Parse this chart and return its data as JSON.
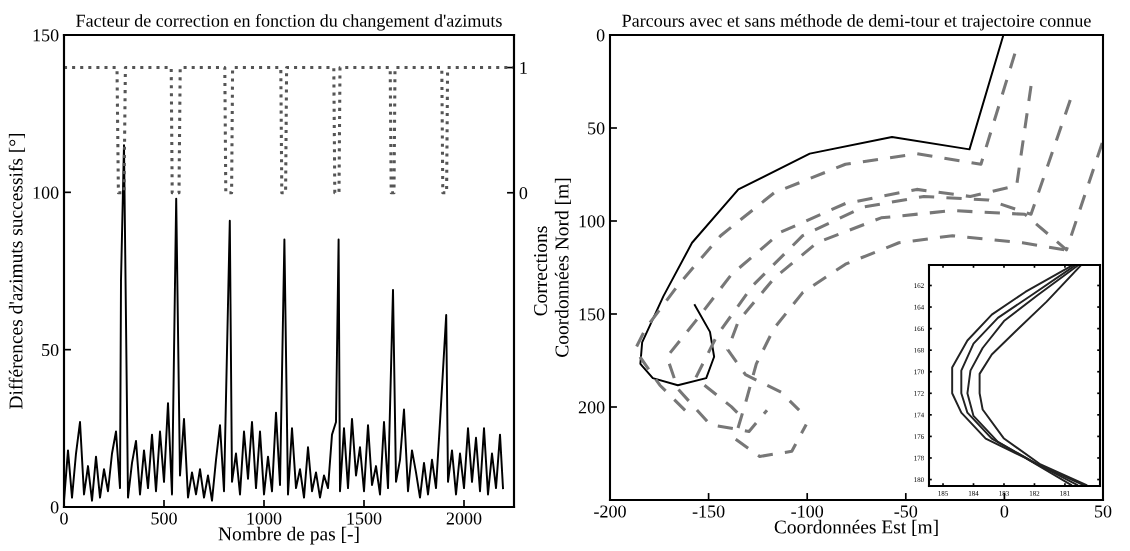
{
  "chart_data": [
    {
      "type": "line",
      "title": "Facteur de correction en fonction du changement d'azimuts",
      "xlabel": "Nombre de pas [-]",
      "ylabel": "Différences d'azimuts successifs [°]",
      "y2label": "Corrections",
      "xlim": [
        0,
        2250
      ],
      "xticks": [
        0,
        500,
        1000,
        1500,
        2000
      ],
      "ylim": [
        0,
        150
      ],
      "yticks": [
        0,
        50,
        100,
        150
      ],
      "y2lim": [
        -2.51,
        1.26
      ],
      "y2ticks": [
        0,
        1
      ],
      "grid": false,
      "series": [
        {
          "color": "#000000",
          "line_style": "solid",
          "x": [
            0,
            20,
            40,
            60,
            80,
            100,
            120,
            140,
            160,
            180,
            200,
            220,
            240,
            260,
            280,
            285,
            300,
            320,
            340,
            360,
            380,
            400,
            420,
            440,
            460,
            480,
            500,
            520,
            540,
            561,
            580,
            600,
            620,
            640,
            660,
            680,
            700,
            720,
            740,
            760,
            780,
            800,
            829,
            840,
            860,
            880,
            900,
            920,
            940,
            960,
            980,
            1000,
            1020,
            1040,
            1060,
            1080,
            1102,
            1120,
            1140,
            1160,
            1180,
            1200,
            1220,
            1240,
            1260,
            1280,
            1300,
            1320,
            1340,
            1360,
            1373,
            1380,
            1400,
            1420,
            1440,
            1460,
            1480,
            1500,
            1520,
            1540,
            1560,
            1580,
            1600,
            1620,
            1645,
            1660,
            1680,
            1700,
            1720,
            1740,
            1760,
            1780,
            1800,
            1820,
            1840,
            1860,
            1880,
            1911,
            1920,
            1940,
            1960,
            1980,
            2000,
            2020,
            2040,
            2060,
            2080,
            2100,
            2120,
            2140,
            2160,
            2180,
            2195
          ],
          "values": [
            2,
            18,
            3,
            17,
            27,
            4,
            13,
            2,
            16,
            3,
            12,
            5,
            17,
            24,
            6,
            72,
            115,
            3,
            14,
            21,
            4,
            18,
            6,
            23,
            5,
            24,
            8,
            33,
            4,
            98,
            10,
            28,
            3,
            11,
            4,
            12,
            3,
            10,
            2,
            15,
            26,
            5,
            91,
            8,
            17,
            4,
            24,
            9,
            27,
            6,
            24,
            4,
            16,
            5,
            30,
            7,
            85,
            4,
            25,
            6,
            12,
            3,
            19,
            5,
            11,
            3,
            10,
            6,
            23,
            27,
            85,
            5,
            25,
            6,
            28,
            10,
            19,
            5,
            26,
            7,
            13,
            4,
            27,
            6,
            69,
            8,
            15,
            31,
            5,
            18,
            11,
            3,
            14,
            4,
            15,
            6,
            27,
            61,
            8,
            18,
            4,
            17,
            6,
            25,
            8,
            22,
            5,
            25,
            4,
            17,
            6,
            23,
            6
          ]
        },
        {
          "color": "#555555",
          "line_style": "dotted",
          "axis": "y2",
          "x": [
            0,
            265,
            272,
            300,
            307,
            536,
            541,
            575,
            581,
            804,
            809,
            838,
            843,
            1084,
            1089,
            1108,
            1113,
            1349,
            1354,
            1375,
            1380,
            1631,
            1636,
            1650,
            1655,
            1889,
            1894,
            1913,
            1918,
            2250
          ],
          "values": [
            1,
            1,
            0,
            0,
            1,
            1,
            0,
            0,
            1,
            1,
            0,
            0,
            1,
            1,
            0,
            0,
            1,
            1,
            0,
            0,
            1,
            1,
            0,
            0,
            1,
            1,
            0,
            0,
            1,
            1
          ]
        }
      ]
    },
    {
      "type": "line",
      "title": "Parcours avec et sans méthode de demi-tour et trajectoire connue",
      "xlabel": "Coordonnées Est [m]",
      "ylabel": "Coordonnées Nord [m]",
      "xlim": [
        -200,
        50
      ],
      "xticks": [
        -200,
        -150,
        -100,
        -50,
        0,
        50
      ],
      "ylim": [
        250,
        0
      ],
      "yticks": [
        0,
        50,
        100,
        150,
        200
      ],
      "grid": false,
      "series": [
        {
          "color": "#000000",
          "line_style": "solid",
          "x": [
            -0.5,
            -17.7,
            -57,
            -98.7,
            -134.9,
            -158.4,
            -172.9,
            -183.7,
            -184.6,
            -178.3,
            -165.6,
            -151.2,
            -147.2,
            -149.3,
            -157
          ],
          "values": [
            0,
            61.5,
            54.8,
            63.8,
            83,
            111.7,
            140.4,
            165.3,
            176.8,
            184.5,
            188.3,
            184.5,
            173,
            159.6,
            145.2
          ]
        },
        {
          "color": "#777777",
          "line_style": "dashed",
          "x": [
            5.3,
            -11.9,
            -44.4,
            -80.6,
            -116.8,
            -143.9,
            -165.6,
            -181.9,
            -187.3,
            -174.7,
            -160.2
          ],
          "values": [
            10,
            69.5,
            63.8,
            69.5,
            84.9,
            107.9,
            134.7,
            157.7,
            169.2,
            188.3,
            203.6
          ]
        },
        {
          "color": "#777777",
          "line_style": "dashed",
          "x": [
            13.5,
            6.2,
            -17.3,
            -44.4,
            -80.6,
            -113.2,
            -138.5,
            -156.6,
            -171.1,
            -165.6,
            -149.3,
            -129.5,
            -120.4
          ],
          "values": [
            27.4,
            81,
            86.8,
            83,
            90.6,
            105.9,
            128.9,
            153.8,
            173,
            190.2,
            209.4,
            213.2,
            201.7
          ]
        },
        {
          "color": "#777777",
          "line_style": "dashed",
          "x": [
            33.4,
            13.5,
            -8.2,
            -40.8,
            -71.6,
            -102.3,
            -127.6,
            -145.7,
            -156.6,
            -138.5,
            -131.3
          ],
          "values": [
            35,
            96.4,
            88.7,
            86.8,
            92.5,
            107.9,
            134.7,
            161.5,
            184.5,
            199.8,
            207.5
          ]
        },
        {
          "color": "#777777",
          "line_style": "dashed",
          "x": [
            49.6,
            31.5,
            10.4,
            -26.3,
            -62.5,
            -95.1,
            -116.8,
            -134.9,
            -140.3,
            -131.3,
            -113.2,
            -104.1
          ],
          "values": [
            58,
            115.5,
            96.4,
            94.4,
            98.3,
            111.7,
            130.8,
            153.8,
            169.2,
            182.6,
            192.1,
            201.7
          ]
        },
        {
          "color": "#777777",
          "line_style": "dashed",
          "x": [
            30.3,
            9.2,
            -26.3,
            -53.5,
            -80.6,
            -102.3,
            -116.8,
            -125.8,
            -131.3,
            -136.7,
            -124.1,
            -107.8,
            -100.5
          ],
          "values": [
            115.5,
            111.7,
            107.9,
            111.7,
            123.2,
            138.5,
            157.7,
            176.8,
            197.9,
            217,
            226.6,
            223.8,
            209.4
          ]
        }
      ]
    },
    {
      "type": "line",
      "xlim": [
        185.46,
        179.85
      ],
      "xticks": [
        185,
        184,
        183,
        182,
        181
      ],
      "ylim": [
        180.6,
        160.1
      ],
      "yticks": [
        162,
        164,
        166,
        168,
        170,
        172,
        174,
        176,
        178,
        180
      ],
      "grid": false,
      "series": [
        {
          "color": "#222222",
          "line_style": "solid",
          "x": [
            180.8,
            182.3,
            183.4,
            184.2,
            184.7,
            184.7,
            184.4,
            183.6,
            182.3,
            180.8
          ],
          "values": [
            160.2,
            162.6,
            164.7,
            167.1,
            169.6,
            172.0,
            173.8,
            176.2,
            178.0,
            180.5
          ]
        },
        {
          "color": "#222222",
          "line_style": "solid",
          "x": [
            180.7,
            182.1,
            183.2,
            184.0,
            184.4,
            184.4,
            184.2,
            183.4,
            182.1,
            180.6
          ],
          "values": [
            160.2,
            162.9,
            165.0,
            167.4,
            169.9,
            172.0,
            173.8,
            176.2,
            178.3,
            180.5
          ]
        },
        {
          "color": "#222222",
          "line_style": "solid",
          "x": [
            180.6,
            181.9,
            183.0,
            183.7,
            184.1,
            184.2,
            184.0,
            183.2,
            181.9,
            180.4
          ],
          "values": [
            160.2,
            162.9,
            165.3,
            167.8,
            169.9,
            172.0,
            174.1,
            176.5,
            178.6,
            180.5
          ]
        },
        {
          "color": "#222222",
          "line_style": "solid",
          "x": [
            180.5,
            181.6,
            182.6,
            183.4,
            183.8,
            183.8,
            183.7,
            183.0,
            181.8,
            180.3
          ],
          "values": [
            160.2,
            163.5,
            166.2,
            168.4,
            170.2,
            172.0,
            173.5,
            176.2,
            178.6,
            180.5
          ]
        }
      ]
    }
  ]
}
